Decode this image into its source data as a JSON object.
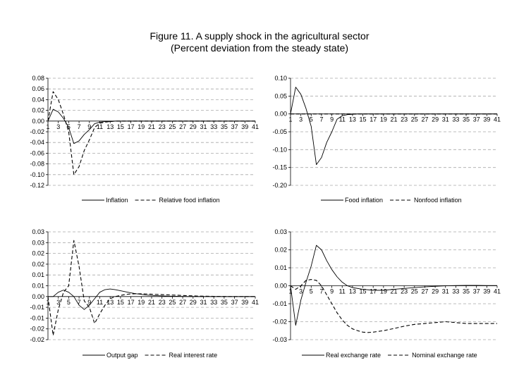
{
  "figure": {
    "title": "Figure 11. A supply shock in the agricultural sector",
    "subtitle": "(Percent deviation from the steady state)"
  },
  "chart_data": [
    {
      "type": "line",
      "xlim": [
        1,
        41
      ],
      "x_tick_labels": [
        "1",
        "3",
        "5",
        "7",
        "9",
        "11",
        "13",
        "15",
        "17",
        "19",
        "21",
        "23",
        "25",
        "27",
        "29",
        "31",
        "33",
        "35",
        "37",
        "39",
        "41"
      ],
      "ylim": [
        -0.12,
        0.08
      ],
      "y_ticks": [
        0.08,
        0.06,
        0.04,
        0.02,
        0.0,
        -0.02,
        -0.04,
        -0.06,
        -0.08,
        -0.1,
        -0.12
      ],
      "y_tick_labels": [
        "0.08",
        "0.06",
        "0.04",
        "0.02",
        "0.00",
        "-0.02",
        "-0.04",
        "-0.06",
        "-0.08",
        "-0.10",
        "-0.12"
      ],
      "grid": true,
      "legend_position": "bottom",
      "series": [
        {
          "name": "Inflation",
          "style": "solid",
          "x": [
            1,
            2,
            3,
            4,
            5,
            6,
            7,
            8,
            9,
            10,
            11,
            12,
            13,
            14,
            15,
            16,
            17,
            18,
            19,
            20,
            41
          ],
          "y": [
            0.0,
            0.022,
            0.017,
            0.005,
            -0.012,
            -0.042,
            -0.037,
            -0.025,
            -0.016,
            -0.005,
            -0.002,
            -0.001,
            -0.001,
            0.0,
            0.0,
            0.0,
            0.0,
            0.0,
            0.0,
            0.0,
            0.0
          ]
        },
        {
          "name": "Relative food inflation",
          "style": "dashed",
          "x": [
            1,
            2,
            3,
            4,
            5,
            6,
            7,
            8,
            9,
            10,
            11,
            12,
            13,
            14,
            15,
            16,
            41
          ],
          "y": [
            0.0,
            0.055,
            0.04,
            0.012,
            -0.02,
            -0.1,
            -0.085,
            -0.055,
            -0.035,
            -0.012,
            -0.004,
            -0.002,
            -0.001,
            0.0,
            0.0,
            0.0,
            0.0
          ]
        }
      ]
    },
    {
      "type": "line",
      "xlim": [
        1,
        41
      ],
      "x_tick_labels": [
        "1",
        "3",
        "5",
        "7",
        "9",
        "11",
        "13",
        "15",
        "17",
        "19",
        "21",
        "23",
        "25",
        "27",
        "29",
        "31",
        "33",
        "35",
        "37",
        "39",
        "41"
      ],
      "ylim": [
        -0.2,
        0.1
      ],
      "y_ticks": [
        0.1,
        0.05,
        0.0,
        -0.05,
        -0.1,
        -0.15,
        -0.2
      ],
      "y_tick_labels": [
        "0.10",
        "0.05",
        "0.00",
        "-0.05",
        "-0.10",
        "-0.15",
        "-0.20"
      ],
      "grid": true,
      "legend_position": "bottom",
      "series": [
        {
          "name": "Food inflation",
          "style": "solid",
          "x": [
            1,
            2,
            3,
            4,
            5,
            6,
            7,
            8,
            9,
            10,
            11,
            12,
            13,
            14,
            15,
            16,
            41
          ],
          "y": [
            0.0,
            0.075,
            0.055,
            0.015,
            -0.035,
            -0.142,
            -0.122,
            -0.08,
            -0.05,
            -0.015,
            -0.005,
            -0.002,
            -0.001,
            0.0,
            0.0,
            0.0,
            0.0
          ]
        },
        {
          "name": "Nonfood inflation",
          "style": "dashed",
          "x": [
            1,
            41
          ],
          "y": [
            0.0,
            0.0
          ]
        }
      ]
    },
    {
      "type": "line",
      "xlim": [
        1,
        41
      ],
      "x_tick_labels": [
        "1",
        "3",
        "5",
        "7",
        "9",
        "11",
        "13",
        "15",
        "17",
        "19",
        "21",
        "23",
        "25",
        "27",
        "29",
        "31",
        "33",
        "35",
        "37",
        "39",
        "41"
      ],
      "ylim": [
        -0.02,
        0.03
      ],
      "y_ticks": [
        0.03,
        0.025,
        0.02,
        0.015,
        0.01,
        0.005,
        0.0,
        -0.005,
        -0.01,
        -0.015,
        -0.02
      ],
      "y_tick_labels": [
        "0.03",
        "0.03",
        "0.02",
        "0.02",
        "0.01",
        "0.01",
        "0.00",
        "-0.01",
        "-0.01",
        "-0.02",
        "-0.02"
      ],
      "grid": true,
      "legend_position": "bottom",
      "series": [
        {
          "name": "Output gap",
          "style": "solid",
          "x": [
            1,
            2,
            3,
            4,
            5,
            6,
            7,
            8,
            9,
            10,
            11,
            12,
            13,
            14,
            15,
            16,
            17,
            18,
            19,
            20,
            22,
            24,
            26,
            28,
            30,
            33,
            36,
            41
          ],
          "y": [
            0.0,
            0.0,
            0.002,
            0.003,
            0.002,
            0.0,
            -0.004,
            -0.006,
            -0.004,
            -0.001,
            0.002,
            0.0032,
            0.0035,
            0.0032,
            0.0027,
            0.0022,
            0.0017,
            0.0013,
            0.001,
            0.0007,
            0.0004,
            0.0002,
            0.0001,
            0.0,
            0.0,
            0.0,
            0.0,
            0.0
          ]
        },
        {
          "name": "Real interest rate",
          "style": "dashed",
          "x": [
            1,
            2,
            3,
            4,
            5,
            6,
            7,
            8,
            9,
            10,
            11,
            12,
            13,
            14,
            15,
            16,
            17,
            18,
            20,
            22,
            24,
            26,
            28,
            30,
            33,
            36,
            41
          ],
          "y": [
            0.0,
            -0.018,
            -0.006,
            0.002,
            0.005,
            0.026,
            0.014,
            -0.002,
            -0.005,
            -0.0125,
            -0.008,
            -0.004,
            -0.001,
            0.0,
            0.0005,
            0.001,
            0.0012,
            0.0013,
            0.0012,
            0.001,
            0.0008,
            0.0006,
            0.0004,
            0.0002,
            0.0001,
            0.0,
            0.0
          ]
        }
      ]
    },
    {
      "type": "line",
      "xlim": [
        1,
        41
      ],
      "x_tick_labels": [
        "1",
        "3",
        "5",
        "7",
        "9",
        "11",
        "13",
        "15",
        "17",
        "19",
        "21",
        "23",
        "25",
        "27",
        "29",
        "31",
        "33",
        "35",
        "37",
        "39",
        "41"
      ],
      "ylim": [
        -0.03,
        0.03
      ],
      "y_ticks": [
        0.03,
        0.02,
        0.01,
        0.0,
        -0.01,
        -0.02,
        -0.03
      ],
      "y_tick_labels": [
        "0.03",
        "0.02",
        "0.01",
        "0.00",
        "-0.01",
        "-0.02",
        "-0.03"
      ],
      "grid": true,
      "legend_position": "bottom",
      "series": [
        {
          "name": "Real exchange rate",
          "style": "solid",
          "x": [
            1,
            2,
            3,
            4,
            5,
            6,
            7,
            8,
            9,
            10,
            11,
            12,
            13,
            15,
            17,
            19,
            21,
            23,
            25,
            27,
            29,
            31,
            33,
            35,
            37,
            39,
            41
          ],
          "y": [
            0.0,
            -0.022,
            -0.008,
            0.002,
            0.011,
            0.0225,
            0.02,
            0.014,
            0.009,
            0.005,
            0.002,
            0.0,
            -0.001,
            -0.002,
            -0.0025,
            -0.0025,
            -0.002,
            -0.0015,
            -0.001,
            -0.0006,
            -0.0003,
            0.0,
            0.0001,
            0.0002,
            0.0002,
            0.0001,
            0.0001
          ]
        },
        {
          "name": "Nominal exchange rate",
          "style": "dashed",
          "x": [
            1,
            2,
            3,
            4,
            5,
            6,
            7,
            8,
            9,
            10,
            11,
            12,
            13,
            14,
            15,
            16,
            17,
            19,
            21,
            23,
            25,
            27,
            29,
            31,
            33,
            35,
            37,
            39,
            41
          ],
          "y": [
            0.0,
            -0.002,
            0.0,
            0.003,
            0.0035,
            0.003,
            0.0,
            -0.005,
            -0.01,
            -0.015,
            -0.019,
            -0.022,
            -0.024,
            -0.025,
            -0.0258,
            -0.026,
            -0.0258,
            -0.025,
            -0.0238,
            -0.0225,
            -0.0215,
            -0.021,
            -0.0205,
            -0.02,
            -0.0205,
            -0.021,
            -0.021,
            -0.021,
            -0.021
          ]
        }
      ]
    }
  ]
}
